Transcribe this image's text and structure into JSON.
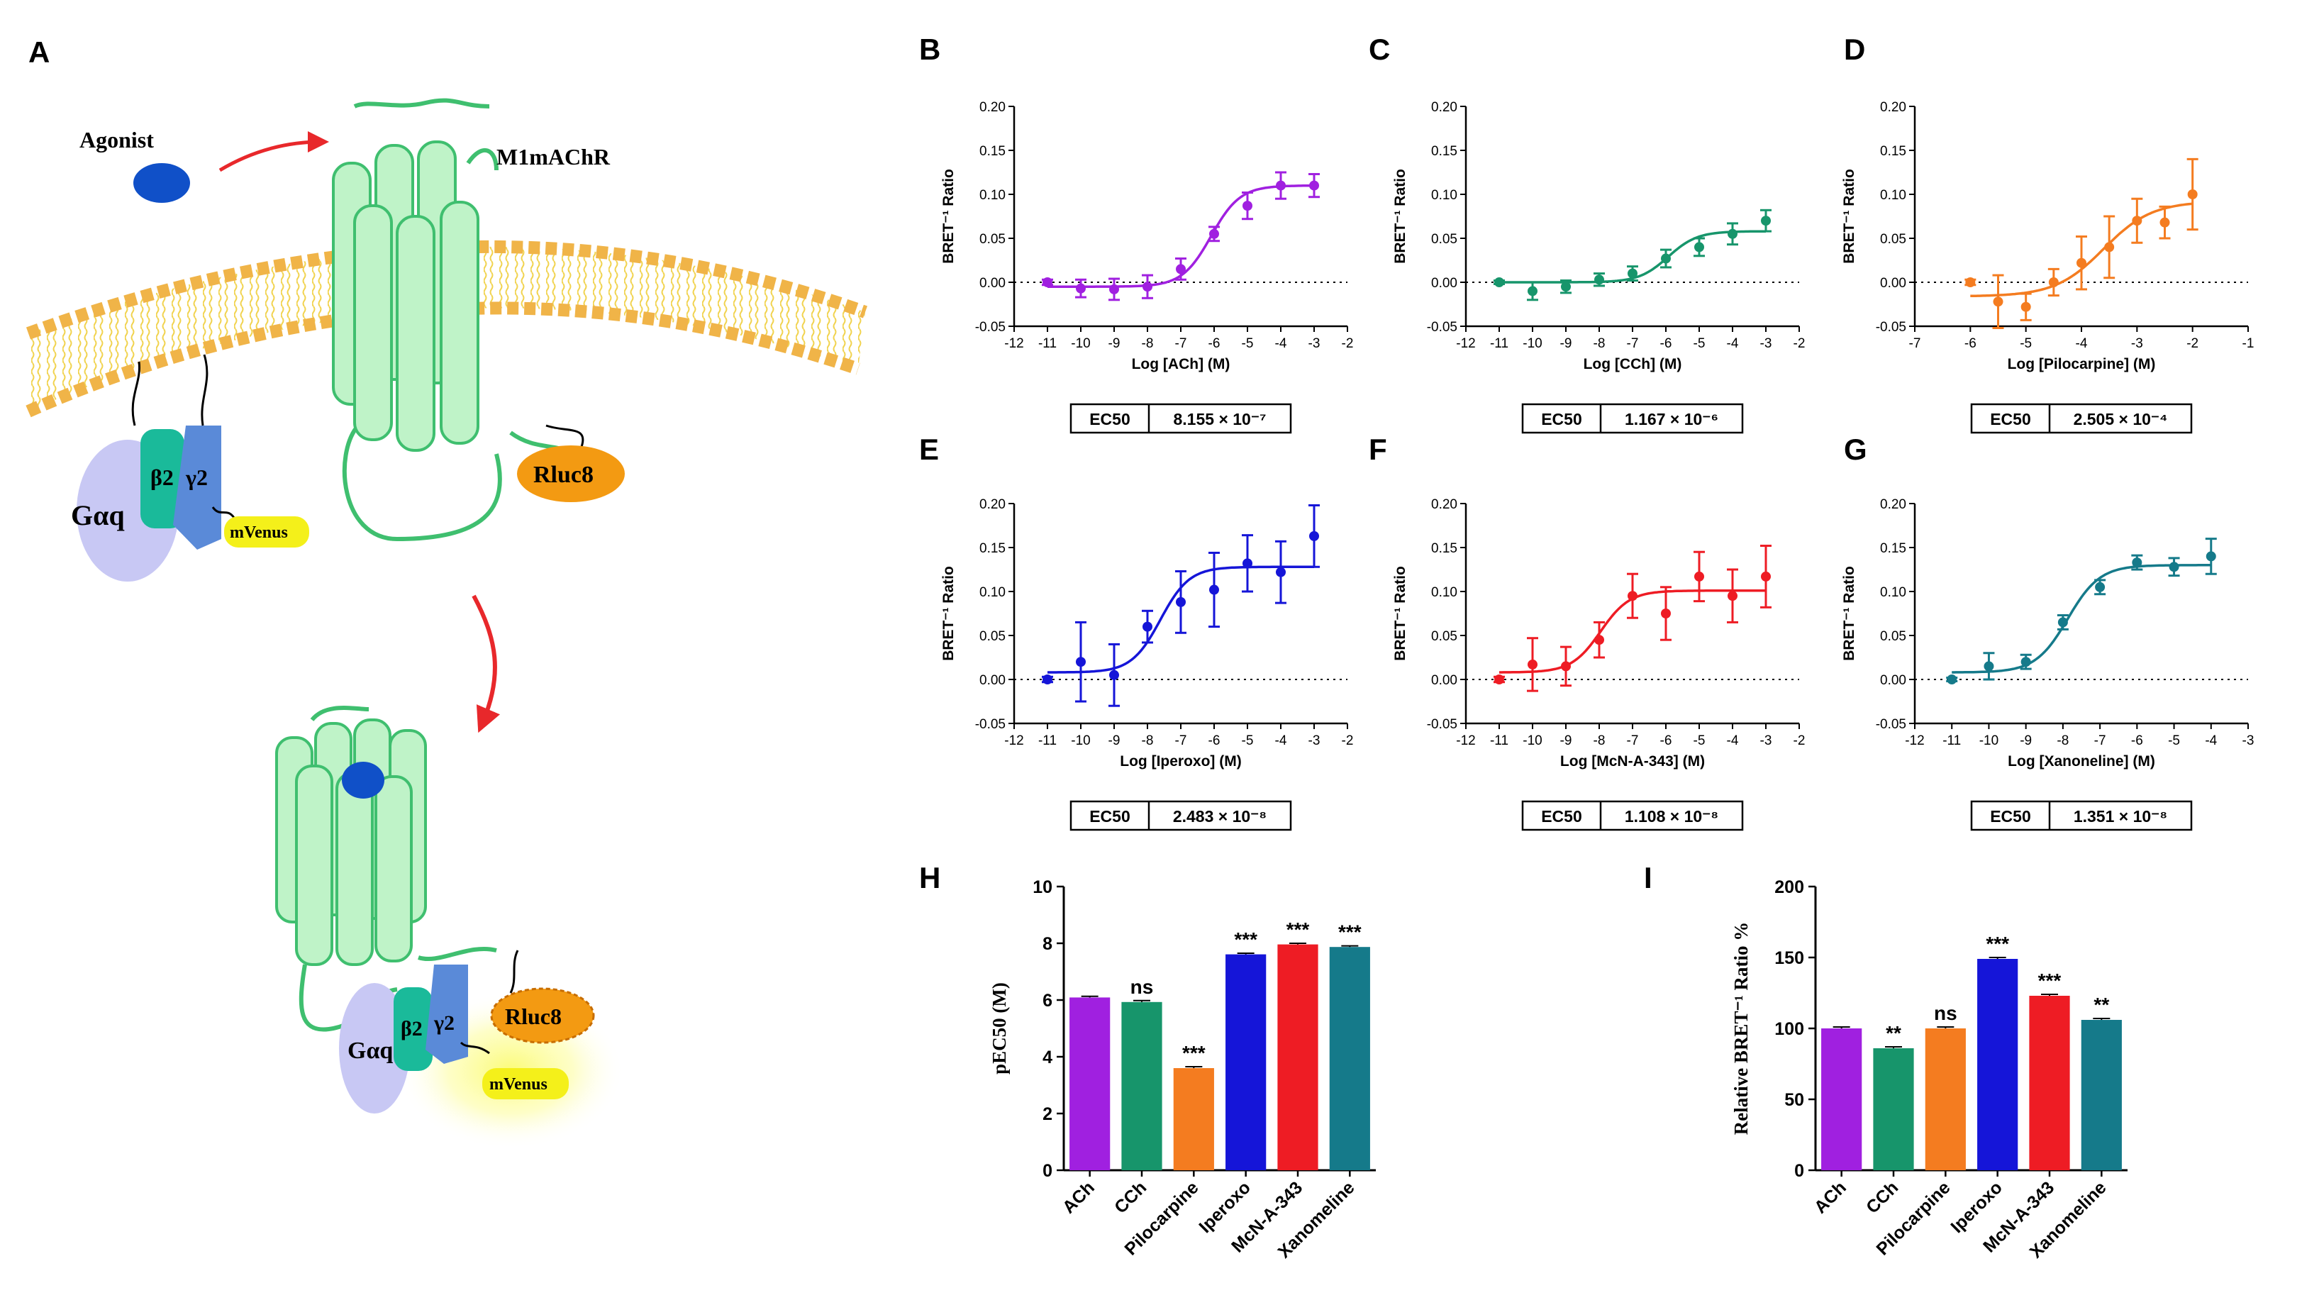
{
  "panel_labels": {
    "A": "A",
    "B": "B",
    "C": "C",
    "D": "D",
    "E": "E",
    "F": "F",
    "G": "G",
    "H": "H",
    "I": "I"
  },
  "diagram": {
    "agonist": "Agonist",
    "receptor": "M1mAChR",
    "galpha": "Gαq",
    "beta": "β2",
    "gamma": "γ2",
    "rluc": "Rluc8",
    "mvenus": "mVenus"
  },
  "colors": {
    "ach": "#a020e0",
    "cch": "#17956b",
    "pilocarpine": "#f47c20",
    "iperoxo": "#1515d8",
    "mcn": "#ee1c24",
    "xanomeline": "#157a8a",
    "receptor_fill": "#bff3c8",
    "receptor_stroke": "#3fbf6f",
    "membrane": "#f5d35a",
    "head": "#f2b64e",
    "galpha": "#c8c8f4",
    "beta": "#1aba9a",
    "gamma": "#5a8ad8",
    "rluc": "#f39a12",
    "mvenus": "#f4f01a",
    "agonist": "#1050c8"
  },
  "chart_data": [
    {
      "id": "B",
      "type": "line",
      "title": "",
      "xlabel": "Log [ACh] (M)",
      "ylabel": "BRET⁻¹ Ratio",
      "xlim": [
        -12,
        -2
      ],
      "ylim": [
        -0.05,
        0.2
      ],
      "xticks": [
        "-12",
        "-11",
        "-10",
        "-9",
        "-8",
        "-7",
        "-6",
        "-5",
        "-4",
        "-3",
        "-2"
      ],
      "yticks": [
        "-0.05",
        "0.00",
        "0.05",
        "0.10",
        "0.15",
        "0.20"
      ],
      "x": [
        -11,
        -10,
        -9,
        -8,
        -7,
        -6,
        -5,
        -4,
        -3
      ],
      "y": [
        0.0,
        -0.007,
        -0.008,
        -0.005,
        0.015,
        0.055,
        0.087,
        0.11,
        0.11
      ],
      "err": [
        0.003,
        0.01,
        0.012,
        0.013,
        0.012,
        0.008,
        0.015,
        0.015,
        0.013
      ],
      "fit": {
        "bottom": -0.005,
        "top": 0.11,
        "logEC50": -6.09
      },
      "ec50_label": "EC50",
      "ec50_value": "8.155 × 10⁻⁷",
      "color_key": "ach"
    },
    {
      "id": "C",
      "type": "line",
      "title": "",
      "xlabel": "Log [CCh] (M)",
      "ylabel": "BRET⁻¹ Ratio",
      "xlim": [
        -12,
        -2
      ],
      "ylim": [
        -0.05,
        0.2
      ],
      "xticks": [
        "-12",
        "-11",
        "-10",
        "-9",
        "-8",
        "-7",
        "-6",
        "-5",
        "-4",
        "-3",
        "-2"
      ],
      "yticks": [
        "-0.05",
        "0.00",
        "0.05",
        "0.10",
        "0.15",
        "0.20"
      ],
      "x": [
        -11,
        -10,
        -9,
        -8,
        -7,
        -6,
        -5,
        -4,
        -3
      ],
      "y": [
        0.0,
        -0.01,
        -0.005,
        0.003,
        0.01,
        0.027,
        0.04,
        0.055,
        0.07
      ],
      "err": [
        0.002,
        0.01,
        0.007,
        0.007,
        0.008,
        0.01,
        0.01,
        0.012,
        0.012
      ],
      "fit": {
        "bottom": 0.0,
        "top": 0.058,
        "logEC50": -5.93
      },
      "ec50_label": "EC50",
      "ec50_value": "1.167 × 10⁻⁶",
      "color_key": "cch"
    },
    {
      "id": "D",
      "type": "line",
      "title": "",
      "xlabel": "Log [Pilocarpine] (M)",
      "ylabel": "BRET⁻¹ Ratio",
      "xlim": [
        -7,
        -1
      ],
      "ylim": [
        -0.05,
        0.2
      ],
      "xticks": [
        "-7",
        "-6",
        "-5",
        "-4",
        "-3",
        "-2",
        "-1"
      ],
      "yticks": [
        "-0.05",
        "0.00",
        "0.05",
        "0.10",
        "0.15",
        "0.20"
      ],
      "x": [
        -6,
        -5.5,
        -5,
        -4.5,
        -4,
        -3.5,
        -3,
        -2.5,
        -2
      ],
      "y": [
        0.0,
        -0.022,
        -0.028,
        0.0,
        0.022,
        0.04,
        0.07,
        0.068,
        0.1
      ],
      "err": [
        0.003,
        0.03,
        0.015,
        0.015,
        0.03,
        0.035,
        0.025,
        0.018,
        0.04
      ],
      "fit": {
        "bottom": -0.016,
        "top": 0.092,
        "logEC50": -3.6
      },
      "ec50_label": "EC50",
      "ec50_value": "2.505 × 10⁻⁴",
      "color_key": "pilocarpine"
    },
    {
      "id": "E",
      "type": "line",
      "title": "",
      "xlabel": "Log [Iperoxo] (M)",
      "ylabel": "BRET⁻¹ Ratio",
      "xlim": [
        -12,
        -2
      ],
      "ylim": [
        -0.05,
        0.2
      ],
      "xticks": [
        "-12",
        "-11",
        "-10",
        "-9",
        "-8",
        "-7",
        "-6",
        "-5",
        "-4",
        "-3",
        "-2"
      ],
      "yticks": [
        "-0.05",
        "0.00",
        "0.05",
        "0.10",
        "0.15",
        "0.20"
      ],
      "x": [
        -11,
        -10,
        -9,
        -8,
        -7,
        -6,
        -5,
        -4,
        -3
      ],
      "y": [
        0.0,
        0.02,
        0.005,
        0.06,
        0.088,
        0.102,
        0.132,
        0.122,
        0.163
      ],
      "err": [
        0.003,
        0.045,
        0.035,
        0.018,
        0.035,
        0.042,
        0.032,
        0.035,
        0.035
      ],
      "fit": {
        "bottom": 0.008,
        "top": 0.128,
        "logEC50": -7.61
      },
      "ec50_label": "EC50",
      "ec50_value": "2.483 × 10⁻⁸",
      "color_key": "iperoxo"
    },
    {
      "id": "F",
      "type": "line",
      "title": "",
      "xlabel": "Log [McN-A-343] (M)",
      "ylabel": "BRET⁻¹ Ratio",
      "xlim": [
        -12,
        -2
      ],
      "ylim": [
        -0.05,
        0.2
      ],
      "xticks": [
        "-12",
        "-11",
        "-10",
        "-9",
        "-8",
        "-7",
        "-6",
        "-5",
        "-4",
        "-3",
        "-2"
      ],
      "yticks": [
        "-0.05",
        "0.00",
        "0.05",
        "0.10",
        "0.15",
        "0.20"
      ],
      "x": [
        -11,
        -10,
        -9,
        -8,
        -7,
        -6,
        -5,
        -4,
        -3
      ],
      "y": [
        0.0,
        0.017,
        0.015,
        0.045,
        0.095,
        0.075,
        0.117,
        0.095,
        0.117
      ],
      "err": [
        0.003,
        0.03,
        0.022,
        0.02,
        0.025,
        0.03,
        0.028,
        0.03,
        0.035
      ],
      "fit": {
        "bottom": 0.008,
        "top": 0.101,
        "logEC50": -7.96
      },
      "ec50_label": "EC50",
      "ec50_value": "1.108 × 10⁻⁸",
      "color_key": "mcn"
    },
    {
      "id": "G",
      "type": "line",
      "title": "",
      "xlabel": "Log [Xanoneline] (M)",
      "ylabel": "BRET⁻¹ Ratio",
      "xlim": [
        -12,
        -3
      ],
      "ylim": [
        -0.05,
        0.2
      ],
      "xticks": [
        "-12",
        "-11",
        "-10",
        "-9",
        "-8",
        "-7",
        "-6",
        "-5",
        "-4",
        "-3"
      ],
      "yticks": [
        "-0.05",
        "0.00",
        "0.05",
        "0.10",
        "0.15",
        "0.20"
      ],
      "x": [
        -11,
        -10,
        -9,
        -8,
        -7,
        -6,
        -5,
        -4
      ],
      "y": [
        0.0,
        0.015,
        0.02,
        0.065,
        0.105,
        0.133,
        0.128,
        0.14
      ],
      "err": [
        0.002,
        0.015,
        0.008,
        0.008,
        0.008,
        0.008,
        0.01,
        0.02
      ],
      "fit": {
        "bottom": 0.008,
        "top": 0.13,
        "logEC50": -7.87
      },
      "ec50_label": "EC50",
      "ec50_value": "1.351 × 10⁻⁸",
      "color_key": "xanomeline"
    },
    {
      "id": "H",
      "type": "bar",
      "title": "",
      "xlabel": "",
      "ylabel": "pEC50 (M)",
      "ylim": [
        0,
        10
      ],
      "yticks": [
        "0",
        "2",
        "4",
        "6",
        "8",
        "10"
      ],
      "categories": [
        "ACh",
        "CCh",
        "Pilocarpine",
        "Iperoxo",
        "McN-A-343",
        "Xanomeline"
      ],
      "values": [
        6.09,
        5.93,
        3.6,
        7.61,
        7.96,
        7.87
      ],
      "err": [
        0.04,
        0.05,
        0.05,
        0.04,
        0.04,
        0.04
      ],
      "significance": [
        "",
        "ns",
        "***",
        "***",
        "***",
        "***"
      ],
      "color_keys": [
        "ach",
        "cch",
        "pilocarpine",
        "iperoxo",
        "mcn",
        "xanomeline"
      ]
    },
    {
      "id": "I",
      "type": "bar",
      "title": "",
      "xlabel": "",
      "ylabel": "Relative BRET⁻¹ Ratio %",
      "ylim": [
        0,
        200
      ],
      "yticks": [
        "0",
        "50",
        "100",
        "150",
        "200"
      ],
      "categories": [
        "ACh",
        "CCh",
        "Pilocarpine",
        "Iperoxo",
        "McN-A-343",
        "Xanomeline"
      ],
      "values": [
        100,
        86,
        100,
        149,
        123,
        106
      ],
      "err": [
        1,
        1,
        1,
        1,
        1,
        1
      ],
      "significance": [
        "",
        "**",
        "ns",
        "***",
        "***",
        "**"
      ],
      "color_keys": [
        "ach",
        "cch",
        "pilocarpine",
        "iperoxo",
        "mcn",
        "xanomeline"
      ]
    }
  ]
}
